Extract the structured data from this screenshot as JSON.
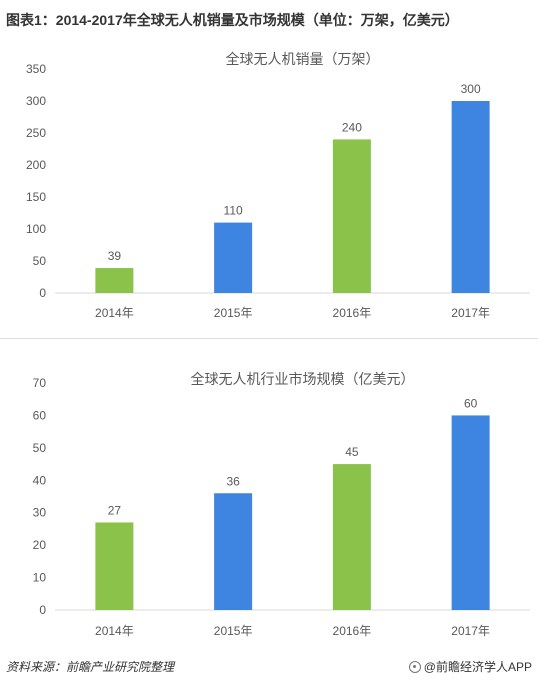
{
  "figure_title": "图表1：2014-2017年全球无人机销量及市场规模（单位：万架，亿美元）",
  "colors": {
    "green": "#8BC34A",
    "blue": "#3D85E0",
    "axis": "#d9d9d9",
    "text": "#595959"
  },
  "chart_data": [
    {
      "type": "bar",
      "title": "全球无人机销量（万架）",
      "categories": [
        "2014年",
        "2015年",
        "2016年",
        "2017年"
      ],
      "values": [
        39,
        110,
        240,
        300
      ],
      "bar_colors": [
        "green",
        "blue",
        "green",
        "blue"
      ],
      "ylim": [
        0,
        350
      ],
      "yticks": [
        0,
        50,
        100,
        150,
        200,
        250,
        300,
        350
      ],
      "grid": false
    },
    {
      "type": "bar",
      "title": "全球无人机行业市场规模（亿美元）",
      "categories": [
        "2014年",
        "2015年",
        "2016年",
        "2017年"
      ],
      "values": [
        27,
        36,
        45,
        60
      ],
      "bar_colors": [
        "green",
        "blue",
        "green",
        "blue"
      ],
      "ylim": [
        0,
        70
      ],
      "yticks": [
        0,
        10,
        20,
        30,
        40,
        50,
        60,
        70
      ],
      "grid": false
    }
  ],
  "footer": {
    "source": "资料来源：前瞻产业研究院整理",
    "brand": "@前瞻经济学人APP",
    "brand_icon": "qianzhan-logo-icon"
  }
}
